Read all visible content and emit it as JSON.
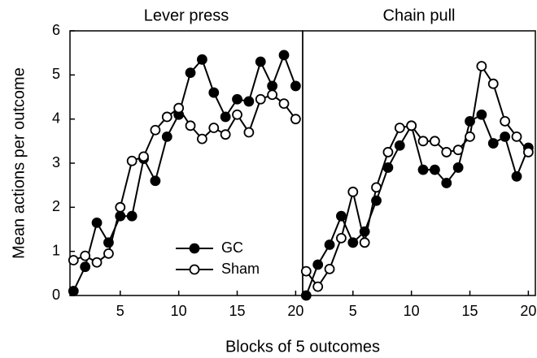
{
  "chart_data": [
    {
      "type": "line",
      "title": "Lever press",
      "ylabel": "Mean actions per outcome",
      "xlabel": "Blocks of 5 outcomes",
      "x": [
        1,
        2,
        3,
        4,
        5,
        6,
        7,
        8,
        9,
        10,
        11,
        12,
        13,
        14,
        15,
        16,
        17,
        18,
        19,
        20
      ],
      "series": [
        {
          "name": "GC",
          "color": "#000000",
          "marker_fill": "#000000",
          "values": [
            0.1,
            0.65,
            1.65,
            1.2,
            1.8,
            1.8,
            3.1,
            2.6,
            3.6,
            4.1,
            5.05,
            5.35,
            4.6,
            4.05,
            4.45,
            4.4,
            5.3,
            4.75,
            5.45,
            4.75
          ]
        },
        {
          "name": "Sham",
          "color": "#000000",
          "marker_fill": "#ffffff",
          "values": [
            0.8,
            0.9,
            0.75,
            0.95,
            2.0,
            3.05,
            3.15,
            3.75,
            4.05,
            4.25,
            3.85,
            3.55,
            3.8,
            3.65,
            4.1,
            3.7,
            4.45,
            4.55,
            4.35,
            4.0
          ]
        }
      ],
      "xlim": [
        0.7,
        20.6
      ],
      "ylim": [
        0,
        6
      ],
      "xticks": [
        5,
        10,
        15,
        20
      ],
      "yticks": [
        0,
        1,
        2,
        3,
        4,
        5,
        6
      ],
      "legend": "lower right"
    },
    {
      "type": "line",
      "title": "Chain pull",
      "x": [
        1,
        2,
        3,
        4,
        5,
        6,
        7,
        8,
        9,
        10,
        11,
        12,
        13,
        14,
        15,
        16,
        17,
        18,
        19,
        20
      ],
      "series": [
        {
          "color": "#000000",
          "marker_fill": "#000000",
          "values": [
            0.0,
            0.7,
            1.15,
            1.8,
            1.2,
            1.45,
            2.15,
            2.9,
            3.4,
            3.85,
            2.85,
            2.85,
            2.55,
            2.9,
            3.95,
            4.1,
            3.45,
            3.6,
            2.7,
            3.35
          ]
        },
        {
          "color": "#000000",
          "marker_fill": "#ffffff",
          "values": [
            0.55,
            0.2,
            0.6,
            1.3,
            2.35,
            1.2,
            2.45,
            3.25,
            3.8,
            3.85,
            3.5,
            3.5,
            3.25,
            3.3,
            3.6,
            5.2,
            4.8,
            3.95,
            3.6,
            3.25
          ]
        }
      ],
      "xlim": [
        0.7,
        20.6
      ],
      "ylim": [
        0,
        6
      ],
      "xticks": [
        5,
        10,
        15,
        20
      ]
    }
  ]
}
